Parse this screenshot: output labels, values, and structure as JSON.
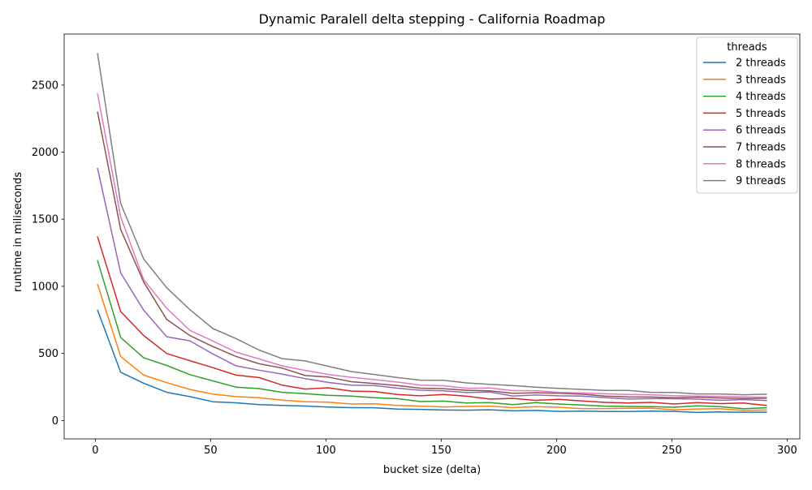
{
  "chart_data": {
    "type": "line",
    "title": "Dynamic Paralell delta stepping - California Roadmap",
    "xlabel": "bucket size (delta)",
    "ylabel": "runtime in miliseconds",
    "xlim": [
      -13.5,
      305.5
    ],
    "ylim": [
      -137,
      2880
    ],
    "xticks": [
      0,
      50,
      100,
      150,
      200,
      250,
      300
    ],
    "yticks": [
      0,
      500,
      1000,
      1500,
      2000,
      2500
    ],
    "grid": false,
    "legend": {
      "title": "threads",
      "placement": "top-right"
    },
    "x": [
      1,
      11,
      21,
      31,
      41,
      51,
      61,
      71,
      81,
      91,
      101,
      111,
      121,
      131,
      141,
      151,
      161,
      171,
      181,
      191,
      201,
      211,
      221,
      231,
      241,
      251,
      261,
      271,
      281,
      291
    ],
    "series": [
      {
        "name": "2 threads",
        "color": "#1f77b4",
        "values": [
          822,
          360,
          278,
          210,
          178,
          140,
          132,
          118,
          113,
          108,
          100,
          96,
          95,
          85,
          83,
          78,
          77,
          80,
          72,
          75,
          68,
          70,
          67,
          67,
          70,
          68,
          60,
          64,
          62,
          62
        ]
      },
      {
        "name": "3 threads",
        "color": "#ff7f0e",
        "values": [
          1014,
          478,
          338,
          282,
          232,
          197,
          178,
          170,
          152,
          140,
          137,
          123,
          124,
          113,
          107,
          101,
          105,
          107,
          96,
          103,
          99,
          88,
          89,
          91,
          92,
          80,
          86,
          88,
          75,
          78
        ]
      },
      {
        "name": "4 threads",
        "color": "#2ca02c",
        "values": [
          1191,
          619,
          467,
          410,
          342,
          295,
          249,
          238,
          210,
          200,
          188,
          182,
          170,
          163,
          141,
          145,
          130,
          133,
          118,
          133,
          123,
          115,
          107,
          105,
          103,
          99,
          109,
          103,
          88,
          95
        ]
      },
      {
        "name": "5 threads",
        "color": "#d62728",
        "values": [
          1368,
          812,
          633,
          499,
          446,
          394,
          338,
          320,
          264,
          234,
          244,
          219,
          216,
          194,
          184,
          194,
          181,
          160,
          165,
          150,
          158,
          146,
          135,
          131,
          135,
          123,
          133,
          126,
          131,
          112
        ]
      },
      {
        "name": "6 threads",
        "color": "#9467bd",
        "values": [
          1878,
          1100,
          822,
          624,
          594,
          496,
          408,
          375,
          346,
          312,
          284,
          264,
          261,
          241,
          226,
          221,
          208,
          212,
          183,
          190,
          184,
          182,
          171,
          160,
          163,
          162,
          159,
          151,
          156,
          149
        ]
      },
      {
        "name": "7 threads",
        "color": "#8c564b",
        "values": [
          2298,
          1424,
          1032,
          753,
          633,
          551,
          478,
          423,
          391,
          335,
          324,
          289,
          276,
          260,
          241,
          237,
          225,
          221,
          203,
          207,
          203,
          196,
          182,
          176,
          175,
          170,
          174,
          168,
          164,
          166
        ]
      },
      {
        "name": "8 threads",
        "color": "#e377c2",
        "values": [
          2434,
          1517,
          1049,
          836,
          672,
          592,
          510,
          459,
          407,
          373,
          343,
          322,
          305,
          286,
          264,
          259,
          240,
          242,
          223,
          222,
          210,
          205,
          199,
          194,
          192,
          185,
          182,
          180,
          176,
          174
        ]
      },
      {
        "name": "9 threads",
        "color": "#7f7f7f",
        "values": [
          2734,
          1618,
          1203,
          989,
          827,
          685,
          611,
          525,
          461,
          444,
          404,
          365,
          343,
          320,
          301,
          300,
          280,
          269,
          260,
          248,
          239,
          232,
          224,
          224,
          210,
          209,
          198,
          198,
          192,
          196
        ]
      }
    ]
  }
}
